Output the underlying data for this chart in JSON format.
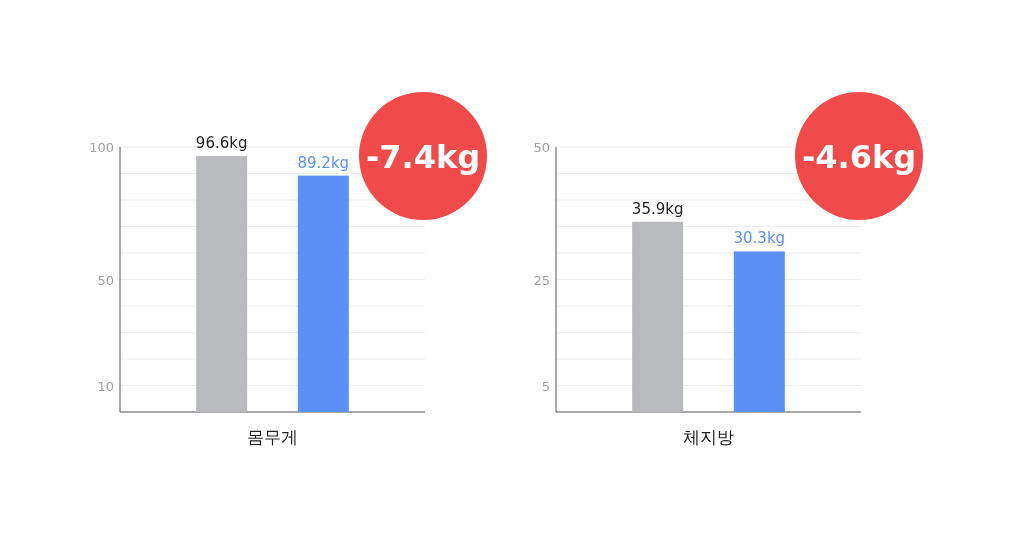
{
  "chart_data": [
    {
      "type": "bar",
      "xlabel": "몸무게",
      "categories": [
        null,
        null
      ],
      "colors": [
        "#b8babd",
        "#5b91f7"
      ],
      "values": [
        96.6,
        89.2
      ],
      "value_labels": [
        "96.6kg",
        "89.2kg"
      ],
      "ylim": [
        0,
        100
      ],
      "yticks": [
        {
          "value": 0,
          "label": null
        },
        {
          "value": 10,
          "label": "10"
        },
        {
          "value": 20,
          "label": null
        },
        {
          "value": 30,
          "label": null
        },
        {
          "value": 40,
          "label": null
        },
        {
          "value": 50,
          "label": "50"
        },
        {
          "value": 60,
          "label": null
        },
        {
          "value": 70,
          "label": null
        },
        {
          "value": 80,
          "label": null
        },
        {
          "value": 90,
          "label": null
        },
        {
          "value": 100,
          "label": "100"
        }
      ],
      "grid": true,
      "annotations": [
        "-7.4kg"
      ]
    },
    {
      "type": "bar",
      "xlabel": "체지방",
      "categories": [
        null,
        null
      ],
      "colors": [
        "#b8babd",
        "#5b91f7"
      ],
      "values": [
        35.9,
        30.3
      ],
      "value_labels": [
        "35.9kg",
        "30.3kg"
      ],
      "ylim": [
        0,
        50
      ],
      "yticks": [
        {
          "value": 0,
          "label": null
        },
        {
          "value": 5,
          "label": "5"
        },
        {
          "value": 10,
          "label": null
        },
        {
          "value": 15,
          "label": null
        },
        {
          "value": 20,
          "label": null
        },
        {
          "value": 25,
          "label": "25"
        },
        {
          "value": 30,
          "label": null
        },
        {
          "value": 35,
          "label": null
        },
        {
          "value": 40,
          "label": null
        },
        {
          "value": 45,
          "label": null
        },
        {
          "value": 50,
          "label": "50"
        }
      ],
      "grid": true,
      "annotations": [
        "-4.6kg"
      ]
    }
  ]
}
